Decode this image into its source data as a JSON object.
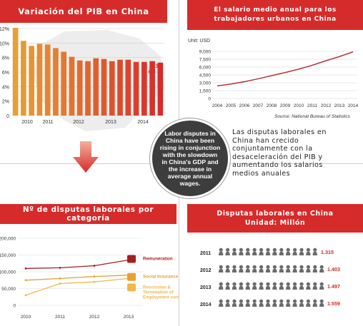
{
  "colors": {
    "red": "#d62b2b",
    "darkred": "#a51f1f",
    "orange": "#e8a033",
    "person": "#6b6b6b"
  },
  "panel_pib": {
    "title": "Variación del PIB en China",
    "callout": {
      "value": "7.3%",
      "period": "Q4 14"
    }
  },
  "panel_salary": {
    "title": "El salario medio anual para los trabajadores urbanos en China",
    "unit": "Unit: USD",
    "source": "Source: National Bureau of Statistics"
  },
  "panel_disputes_cat": {
    "title": "Nº de disputas laborales por categoría"
  },
  "panel_disputes": {
    "title_line1": "Disputas laborales en China",
    "title_line2": "Unidad: Millón"
  },
  "center_circle": "Labor disputes in China have been rising in conjunction with the slowdown in China's GDP and the increase in average annual wages.",
  "annotation": "Las disputas laborales en China han crecido conjuntamente con la desaceleración del PIB y aumentando los salarios medios anuales",
  "chart_data": [
    {
      "type": "bar",
      "title": "Variación del PIB en China",
      "x_tick_labels": [
        "2010",
        "2011",
        "2012",
        "2013",
        "2014"
      ],
      "y_tick_labels": [
        "12%",
        "10%",
        "8%",
        "6%",
        "4%",
        "2%",
        "0"
      ],
      "ylim": [
        0,
        12
      ],
      "values": [
        12.1,
        10.3,
        9.6,
        9.9,
        9.8,
        9.3,
        8.8,
        8.1,
        7.6,
        7.5,
        7.9,
        7.8,
        7.5,
        7.7,
        7.7,
        7.4,
        7.4,
        7.5,
        7.3
      ],
      "annotations": [
        "7.3%",
        "Q4 14"
      ]
    },
    {
      "type": "line",
      "title": "El salario medio anual para los trabajadores urbanos en China",
      "ylabel": "Unit: USD",
      "x": [
        "2004",
        "2005",
        "2006",
        "2007",
        "2008",
        "2009",
        "2010",
        "2011",
        "2012",
        "2013",
        "2014"
      ],
      "values": [
        2400,
        2750,
        3200,
        3750,
        4350,
        4950,
        5600,
        6350,
        7200,
        8000,
        8900
      ],
      "y_tick_labels": [
        "9,000",
        "7,500",
        "6,000",
        "4,500",
        "3,000",
        "1,500",
        "0"
      ],
      "ylim": [
        0,
        9000
      ],
      "source": "Source: National Bureau of Statistics"
    },
    {
      "type": "line",
      "title": "Nº de disputas laborales por categoría",
      "x": [
        "2010",
        "2011",
        "2012",
        "2013"
      ],
      "y_tick_labels": [
        "200,000",
        "150,000",
        "100,000",
        "50,000",
        "0"
      ],
      "ylim": [
        0,
        200000
      ],
      "series": [
        {
          "name": "Remuneration",
          "values": [
            110000,
            112000,
            118000,
            135000
          ]
        },
        {
          "name": "Social Insurance",
          "values": [
            75000,
            80000,
            86000,
            90000
          ]
        },
        {
          "name": "Rescission & Termination of Employment contract",
          "values": [
            30000,
            65000,
            70000,
            80000
          ]
        }
      ]
    },
    {
      "type": "bar",
      "title": "Disputas laborales en China",
      "ylabel": "Unidad: Millón",
      "categories": [
        "2011",
        "2012",
        "2013",
        "2014"
      ],
      "values": [
        1.315,
        1.403,
        1.497,
        1.559
      ],
      "labels": [
        "1.315",
        "1.403",
        "1.497",
        "1.559"
      ]
    }
  ]
}
